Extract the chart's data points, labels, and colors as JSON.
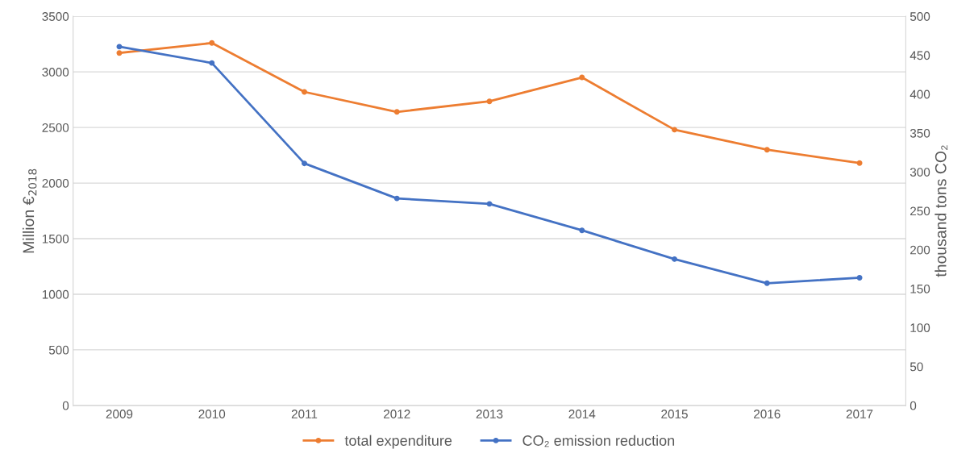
{
  "chart_data": {
    "type": "line",
    "ylabel": "Million €$_{2018}$",
    "y2label": "thousand tons CO₂",
    "categories": [
      "2009",
      "2010",
      "2011",
      "2012",
      "2013",
      "2014",
      "2015",
      "2016",
      "2017"
    ],
    "series": [
      {
        "name": "total expenditure",
        "color": "#ed7d31",
        "values": [
          3170,
          3260,
          2820,
          2640,
          2735,
          2950,
          2480,
          2300,
          2180
        ]
      },
      {
        "name": "CO₂ emission reduction",
        "color": "#4472c4",
        "axis": "y2",
        "values": [
          461,
          440,
          311,
          266,
          259,
          225,
          188,
          157,
          164
        ]
      }
    ],
    "ylim": [
      0,
      3500
    ],
    "yticks": [
      0,
      500,
      1000,
      1500,
      2000,
      2500,
      3000,
      3500
    ],
    "y2lim": [
      0,
      500
    ],
    "y2ticks": [
      0,
      50,
      100,
      150,
      200,
      250,
      300,
      350,
      400,
      450,
      500
    ],
    "grid": "y",
    "legend": "bottom",
    "marker": "circle",
    "line_style": "solid"
  }
}
